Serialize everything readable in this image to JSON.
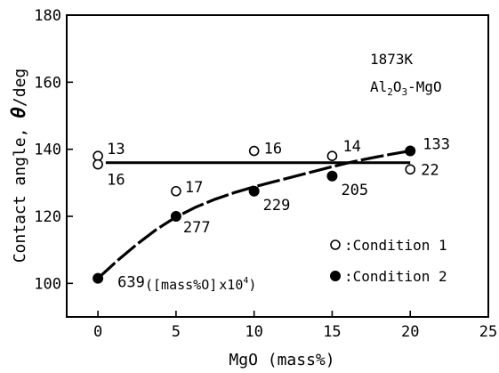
{
  "chart_data": {
    "type": "scatter",
    "xlabel": "MgO (mass%)",
    "ylabel_main": "Contact angle, ",
    "ylabel_symbol": "θ",
    "ylabel_unit": "/deg",
    "xlim": [
      -2,
      25
    ],
    "ylim": [
      90,
      180
    ],
    "x_ticks": [
      0,
      5,
      10,
      15,
      20,
      25
    ],
    "y_ticks": [
      100,
      120,
      140,
      160,
      180
    ],
    "grid": false,
    "condition_title": "1873K",
    "system_label": {
      "a": "Al",
      "s1": "2",
      "b": "O",
      "s2": "3",
      "c": "-MgO"
    },
    "legend": {
      "placement": "bottom-right",
      "entries": [
        {
          "marker": "open-circle",
          "label": ":Condition 1"
        },
        {
          "marker": "filled-circle",
          "label": ":Condition 2"
        }
      ]
    },
    "series": [
      {
        "marker": "open-circle",
        "points": [
          {
            "x": 0,
            "y": 138,
            "label": "13"
          },
          {
            "x": 0,
            "y": 135.5,
            "label": "16"
          },
          {
            "x": 5,
            "y": 127.5,
            "label": "17"
          },
          {
            "x": 10,
            "y": 139.5,
            "label": "16"
          },
          {
            "x": 15,
            "y": 138,
            "label": "14"
          },
          {
            "x": 20,
            "y": 134,
            "label": "22"
          }
        ]
      },
      {
        "marker": "filled-circle",
        "points": [
          {
            "x": 0,
            "y": 101.5,
            "label": "639"
          },
          {
            "x": 5,
            "y": 120,
            "label": "277"
          },
          {
            "x": 10,
            "y": 127.5,
            "label": "229"
          },
          {
            "x": 15,
            "y": 132,
            "label": "205"
          },
          {
            "x": 20,
            "y": 139.5,
            "label": "133"
          }
        ]
      }
    ],
    "lines": [
      {
        "style": "solid",
        "points": [
          [
            0.5,
            136
          ],
          [
            20,
            136
          ]
        ]
      },
      {
        "style": "dashed",
        "points": [
          [
            0,
            101.5
          ],
          [
            1.25,
            106.8
          ],
          [
            2.5,
            111.7
          ],
          [
            3.75,
            116.1
          ],
          [
            5,
            119.8
          ],
          [
            6.25,
            122.7
          ],
          [
            7.5,
            125.1
          ],
          [
            8.75,
            127.1
          ],
          [
            10,
            128.8
          ],
          [
            11.25,
            130.3
          ],
          [
            12.5,
            131.8
          ],
          [
            13.75,
            133.3
          ],
          [
            15,
            134.8
          ],
          [
            16.25,
            136.2
          ],
          [
            17.5,
            137.4
          ],
          [
            18.75,
            138.5
          ],
          [
            20,
            139.5
          ]
        ]
      }
    ],
    "annotation": {
      "prefix": "(",
      "main": "[mass%O]",
      "mult": "x10",
      "exp": "4",
      "suffix": ")"
    }
  }
}
